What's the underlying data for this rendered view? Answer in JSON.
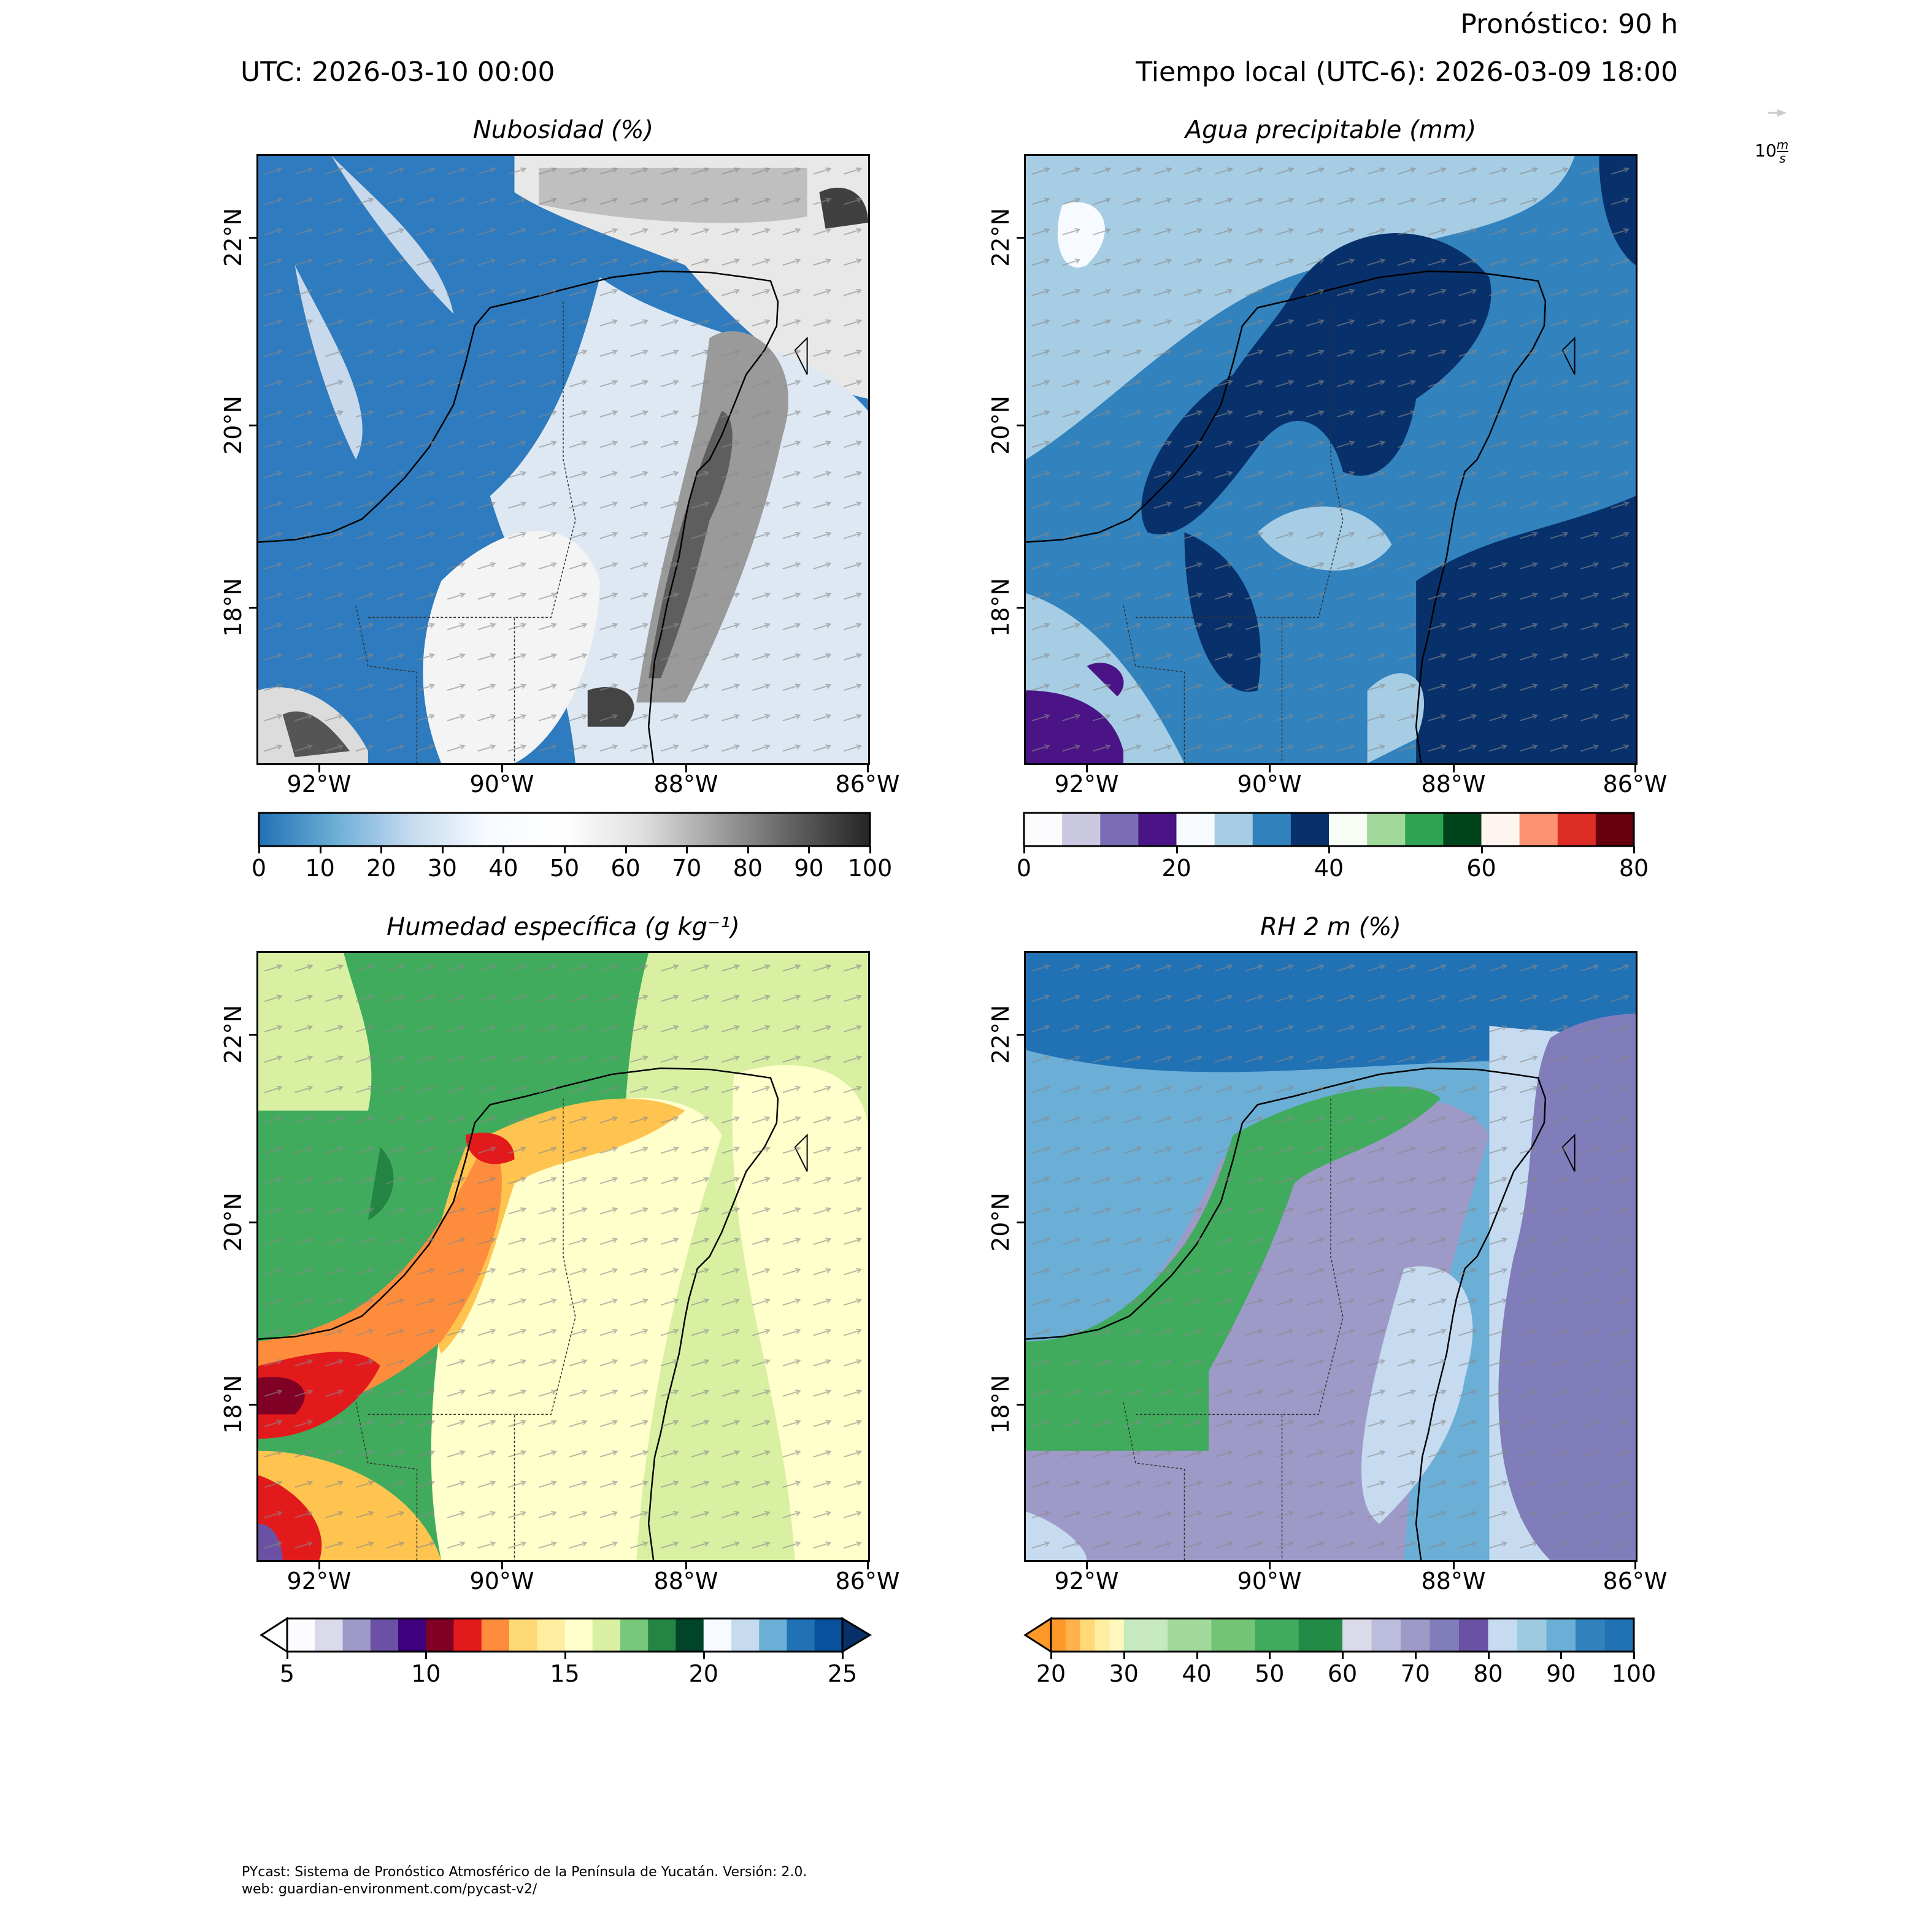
{
  "header": {
    "utc": "UTC:  2026-03-10 00:00",
    "local": "Tiempo local (UTC-6): 2026-03-09 18:00",
    "forecast": "Pronóstico: 90 h"
  },
  "wind_key": {
    "value": "10",
    "unit_num": "m",
    "unit_den": "s"
  },
  "footer": {
    "line1": "PYcast: Sistema de Pronóstico Atmosférico de la Península de Yucatán. Versión: 2.0.",
    "line2": "web: guardian-environment.com/pycast-v2/"
  },
  "chart_data": [
    {
      "type": "heatmap",
      "title": "Nubosidad (%)",
      "lon_ticks": [
        "92°W",
        "90°W",
        "88°W",
        "86°W"
      ],
      "lat_ticks": [
        "22°N",
        "20°N",
        "18°N"
      ],
      "extent": {
        "lon": [
          -92.7,
          -86.0
        ],
        "lat": [
          16.3,
          22.9
        ]
      },
      "colorbar": {
        "range": [
          0,
          100
        ],
        "ticks": [
          "0",
          "10",
          "20",
          "30",
          "40",
          "50",
          "60",
          "70",
          "80",
          "90",
          "100"
        ],
        "extend": "neither",
        "gradient": [
          "#2171b5",
          "#6baed6",
          "#c6dbef",
          "#f7fbff",
          "#ffffff",
          "#e0e0e0",
          "#a0a0a0",
          "#606060",
          "#252525"
        ]
      }
    },
    {
      "type": "heatmap",
      "title": "Agua precipitable (mm)",
      "lon_ticks": [
        "92°W",
        "90°W",
        "88°W",
        "86°W"
      ],
      "lat_ticks": [
        "22°N",
        "20°N",
        "18°N"
      ],
      "extent": {
        "lon": [
          -92.7,
          -86.0
        ],
        "lat": [
          16.3,
          22.9
        ]
      },
      "colorbar": {
        "range": [
          0,
          80
        ],
        "ticks": [
          "0",
          "20",
          "40",
          "60",
          "80"
        ],
        "extend": "neither",
        "levels": [
          "#fcfbfd",
          "#cbc9e2",
          "#7b6db5",
          "#4a1486",
          "#f7fbff",
          "#a6cde3",
          "#3182bd",
          "#08306b",
          "#f7fcf5",
          "#a1d99b",
          "#31a354",
          "#00441b",
          "#fff5f0",
          "#fc9272",
          "#de2d26",
          "#67000d"
        ]
      }
    },
    {
      "type": "heatmap",
      "title": "Humedad específica (g kg⁻¹)",
      "lon_ticks": [
        "92°W",
        "90°W",
        "88°W",
        "86°W"
      ],
      "lat_ticks": [
        "22°N",
        "20°N",
        "18°N"
      ],
      "extent": {
        "lon": [
          -92.7,
          -86.0
        ],
        "lat": [
          16.3,
          22.9
        ]
      },
      "colorbar": {
        "range": [
          5,
          25
        ],
        "ticks": [
          "5",
          "10",
          "15",
          "20",
          "25"
        ],
        "extend": "both",
        "under": "#ffffff",
        "over": "#08306b",
        "levels": [
          "#fcfbfd",
          "#dadaeb",
          "#9e9ac8",
          "#6a51a3",
          "#3f007d",
          "#800026",
          "#e31a1c",
          "#fd8d3c",
          "#fed976",
          "#ffeda0",
          "#ffffcc",
          "#d9f0a3",
          "#78c679",
          "#238443",
          "#004529",
          "#f7fbff",
          "#c6dbef",
          "#6baed6",
          "#2171b5",
          "#08519c"
        ]
      }
    },
    {
      "type": "heatmap",
      "title": "RH 2 m (%)",
      "lon_ticks": [
        "92°W",
        "90°W",
        "88°W",
        "86°W"
      ],
      "lat_ticks": [
        "22°N",
        "20°N",
        "18°N"
      ],
      "extent": {
        "lon": [
          -92.7,
          -86.0
        ],
        "lat": [
          16.3,
          22.9
        ]
      },
      "colorbar": {
        "range": [
          20,
          100
        ],
        "ticks": [
          "20",
          "30",
          "40",
          "50",
          "60",
          "70",
          "80",
          "90",
          "100"
        ],
        "extend": "min",
        "under": "#fe9929",
        "segments": [
          {
            "from": 20,
            "to": 30,
            "colors": [
              "#fe9929",
              "#feb24c",
              "#fed976",
              "#ffeda0",
              "#fff7bc"
            ]
          },
          {
            "from": 30,
            "to": 60,
            "colors": [
              "#c7e9c0",
              "#a1d99b",
              "#74c476",
              "#41ab5d",
              "#238b45"
            ]
          },
          {
            "from": 60,
            "to": 80,
            "colors": [
              "#dadaeb",
              "#bcbddc",
              "#9e9ac8",
              "#807dba",
              "#6a51a3"
            ]
          },
          {
            "from": 80,
            "to": 100,
            "colors": [
              "#c6dbef",
              "#9ecae1",
              "#6baed6",
              "#3182bd",
              "#2171b5"
            ]
          }
        ]
      }
    }
  ]
}
